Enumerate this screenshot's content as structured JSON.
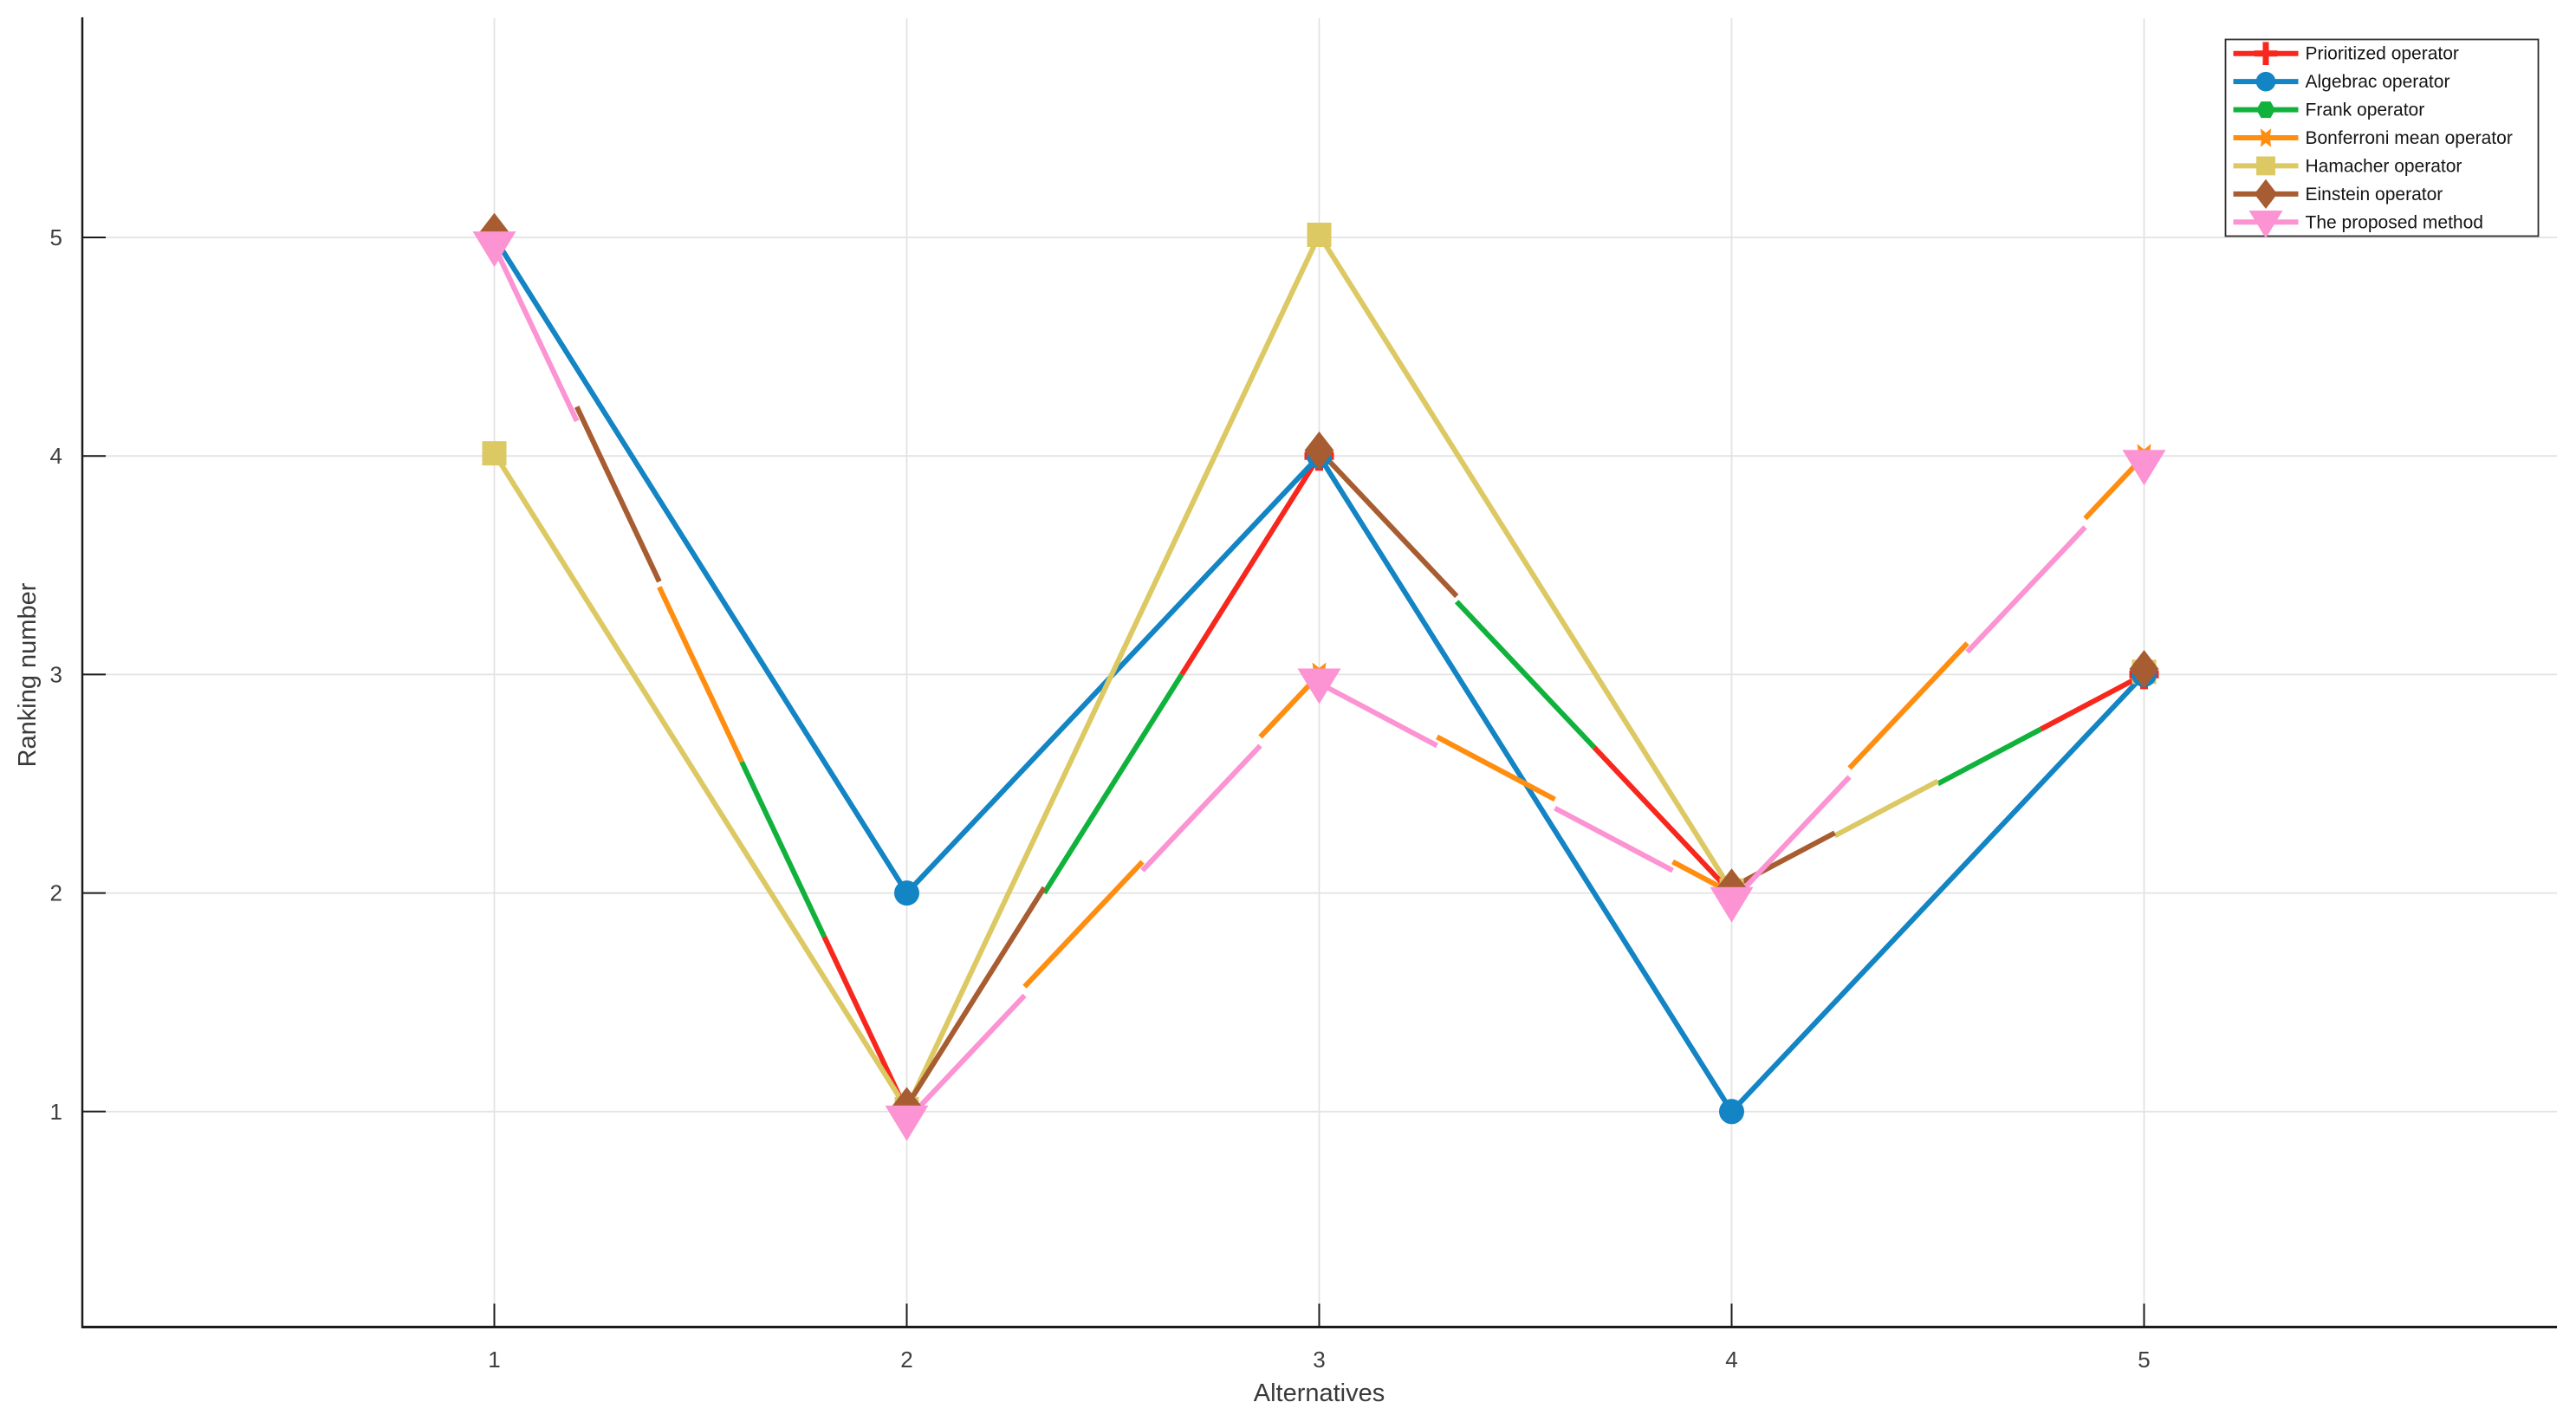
{
  "figure": {
    "background": "#ffffff",
    "axis_color": "#1c1c1c",
    "grid_color": "#e3e3e3",
    "tick_label_color": "#3f3f3f",
    "legend_border_color": "#2e2e2e"
  },
  "chart_data": {
    "type": "line",
    "title": "",
    "xlabel": "Alternatives",
    "ylabel": "Ranking number",
    "x": [
      1,
      2,
      3,
      4,
      5
    ],
    "xlim": [
      0,
      6
    ],
    "ylim": [
      0,
      6
    ],
    "xticks": [
      "1",
      "2",
      "3",
      "4",
      "5"
    ],
    "yticks": [
      "1",
      "2",
      "3",
      "4",
      "5"
    ],
    "grid": true,
    "legend_position": "top-right",
    "series": [
      {
        "name": "Prioritized operator",
        "color": "#f8271d",
        "marker": "plus",
        "values": [
          5,
          1,
          4,
          2,
          3
        ]
      },
      {
        "name": "Algebrac operator",
        "color": "#1384c4",
        "marker": "circle",
        "values": [
          5,
          2,
          4,
          1,
          3
        ]
      },
      {
        "name": "Frank operator",
        "color": "#10b23c",
        "marker": "hexagon",
        "values": [
          5,
          1,
          4,
          2,
          3
        ]
      },
      {
        "name": "Bonferroni mean operator",
        "color": "#ff8e10",
        "marker": "star6",
        "values": [
          5,
          1,
          3,
          2,
          4
        ]
      },
      {
        "name": "Hamacher operator",
        "color": "#dcc963",
        "marker": "square",
        "values": [
          4,
          1,
          5,
          2,
          3
        ]
      },
      {
        "name": "Einstein operator",
        "color": "#a75d31",
        "marker": "diamond",
        "values": [
          5,
          1,
          4,
          2,
          3
        ]
      },
      {
        "name": "The proposed method",
        "color": "#fc93d2",
        "marker": "triangle-down",
        "values": [
          5,
          1,
          3,
          2,
          4
        ]
      }
    ]
  }
}
